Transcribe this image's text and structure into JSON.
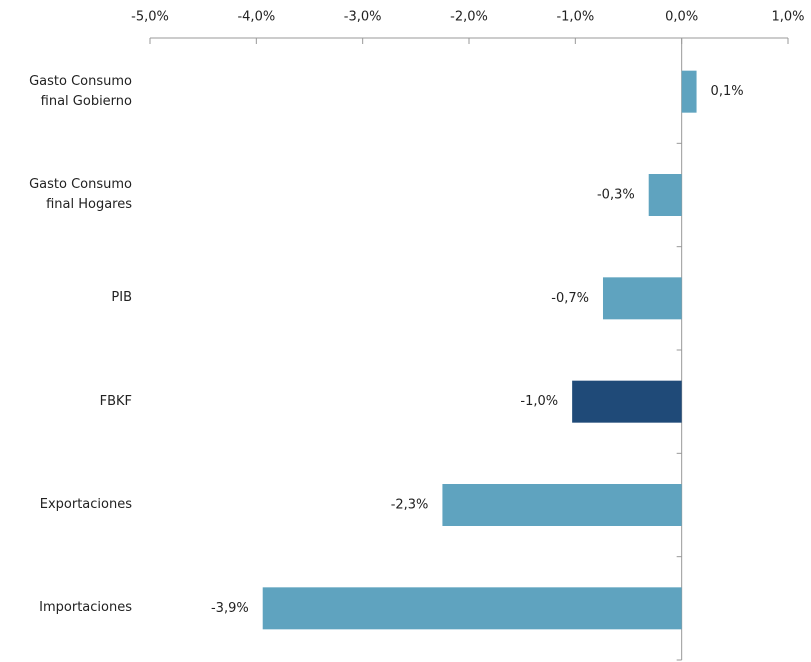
{
  "chart_data": {
    "type": "barh",
    "categories": [
      "Gasto Consumo final Gobierno",
      "Gasto Consumo final Hogares",
      "PIB",
      "FBKF",
      "Exportaciones",
      "Importaciones"
    ],
    "values": [
      0.14,
      -0.31,
      -0.74,
      -1.03,
      -2.25,
      -3.94
    ],
    "value_labels": [
      "0,1%",
      "-0,3%",
      "-0,7%",
      "-1,0%",
      "-2,3%",
      "-3,9%"
    ],
    "colors": [
      "#5fa3bf",
      "#5fa3bf",
      "#5fa3bf",
      "#1f4a78",
      "#5fa3bf",
      "#5fa3bf"
    ],
    "xlim": [
      -5,
      1
    ],
    "xticks": [
      {
        "value": -5,
        "label": "-5,0%"
      },
      {
        "value": -4,
        "label": "-4,0%"
      },
      {
        "value": -3,
        "label": "-3,0%"
      },
      {
        "value": -2,
        "label": "-2,0%"
      },
      {
        "value": -1,
        "label": "-1,0%"
      },
      {
        "value": 0,
        "label": "0,0%"
      },
      {
        "value": 1,
        "label": "1,0%"
      }
    ],
    "xaxis_position": "top"
  }
}
